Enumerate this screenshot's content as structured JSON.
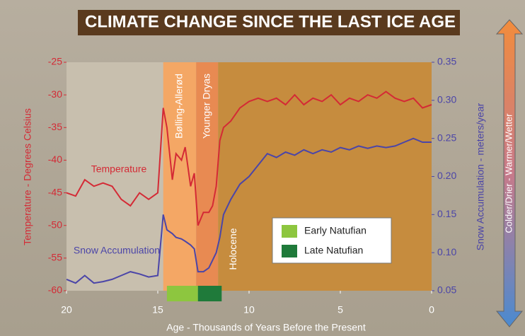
{
  "chart_data": {
    "type": "line",
    "title": "CLIMATE CHANGE SINCE THE LAST ICE AGE",
    "x_label": "Age - Thousands of Years Before the Present",
    "y_label": "Temperature - Degrees Celsius",
    "y2_label": "Snow Accumulation - meters/year",
    "side_label": "Colder/Drier - Warmer/Wetter",
    "xlim": [
      20,
      0
    ],
    "xticks": [
      20,
      15,
      10,
      5,
      0
    ],
    "ylim": [
      -60,
      -25
    ],
    "yticks": [
      -25,
      -30,
      -35,
      -40,
      -45,
      -50,
      -55,
      -60
    ],
    "y2lim": [
      0.05,
      0.35
    ],
    "y2ticks": [
      0.35,
      {
        "value": 0.3,
        "label": "0.30"
      },
      0.25,
      {
        "value": 0.2,
        "label": "0.20"
      },
      0.15,
      {
        "value": 0.1,
        "label": "0.10"
      },
      0.05
    ],
    "periods": [
      {
        "name": "Bølling-Allerød",
        "start": 14.7,
        "end": 12.9,
        "color": "#f4a765"
      },
      {
        "name": "Younger Dryas",
        "start": 12.9,
        "end": 11.7,
        "color": "#e88a52"
      },
      {
        "name": "Holocene",
        "start": 11.7,
        "end": 0,
        "color": "#c68c3e"
      }
    ],
    "cultures": [
      {
        "name": "Early Natufian",
        "start": 14.5,
        "end": 12.8,
        "color": "#8dc63f"
      },
      {
        "name": "Late Natufian",
        "start": 12.8,
        "end": 11.5,
        "color": "#1f7a3a"
      }
    ],
    "x": [
      20,
      19.5,
      19,
      18.5,
      18,
      17.5,
      17,
      16.5,
      16,
      15.5,
      15,
      14.7,
      14.5,
      14.2,
      14,
      13.7,
      13.5,
      13.2,
      13,
      12.8,
      12.5,
      12.2,
      12,
      11.8,
      11.6,
      11.4,
      11,
      10.5,
      10,
      9.5,
      9,
      8.5,
      8,
      7.5,
      7,
      6.5,
      6,
      5.5,
      5,
      4.5,
      4,
      3.5,
      3,
      2.5,
      2,
      1.5,
      1,
      0.5,
      0
    ],
    "series": [
      {
        "name": "Temperature",
        "color": "#d42a35",
        "values": [
          -45,
          -45.5,
          -43,
          -44,
          -43.5,
          -44,
          -46,
          -47,
          -45,
          -46,
          -45,
          -32,
          -35,
          -43,
          -39,
          -40,
          -38,
          -44,
          -42,
          -50,
          -48,
          -48,
          -47,
          -44,
          -37,
          -35,
          -34,
          -32,
          -31,
          -30.5,
          -31,
          -30.5,
          -31.5,
          -30,
          -31.5,
          -30.5,
          -31,
          -30,
          -31.5,
          -30.5,
          -31,
          -30,
          -30.5,
          -29.5,
          -30.5,
          -31,
          -30.5,
          -32,
          -31.5
        ]
      },
      {
        "name": "Snow Accumulation",
        "color": "#4b45a8",
        "axis": "y2",
        "values": [
          0.065,
          0.06,
          0.07,
          0.06,
          0.062,
          0.065,
          0.07,
          0.075,
          0.072,
          0.068,
          0.07,
          0.15,
          0.13,
          0.125,
          0.12,
          0.118,
          0.115,
          0.11,
          0.105,
          0.075,
          0.075,
          0.08,
          0.09,
          0.1,
          0.12,
          0.15,
          0.17,
          0.19,
          0.2,
          0.215,
          0.23,
          0.225,
          0.232,
          0.228,
          0.235,
          0.23,
          0.235,
          0.232,
          0.238,
          0.235,
          0.24,
          0.237,
          0.24,
          0.238,
          0.24,
          0.245,
          0.25,
          0.245,
          0.245
        ]
      }
    ]
  }
}
